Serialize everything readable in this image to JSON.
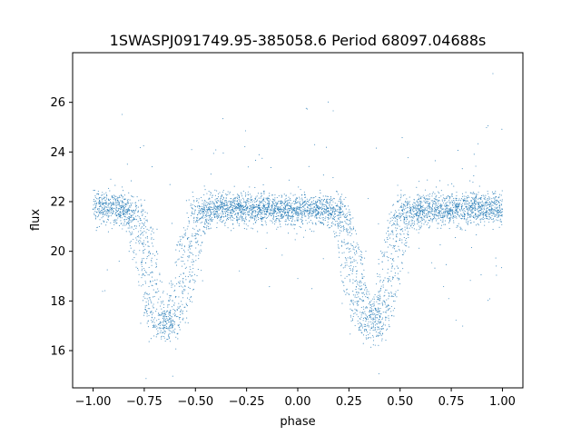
{
  "chart_data": {
    "type": "scatter",
    "title": "1SWASPJ091749.95-385058.6 Period 68097.04688s",
    "xlabel": "phase",
    "ylabel": "flux",
    "xlim": [
      -1.1,
      1.1
    ],
    "ylim": [
      14.5,
      28.0
    ],
    "xticks": [
      -1.0,
      -0.75,
      -0.5,
      -0.25,
      0.0,
      0.25,
      0.5,
      0.75,
      1.0
    ],
    "xtick_labels": [
      "−1.00",
      "−0.75",
      "−0.50",
      "−0.25",
      "0.00",
      "0.25",
      "0.50",
      "0.75",
      "1.00"
    ],
    "yticks": [
      16,
      18,
      20,
      22,
      24,
      26
    ],
    "ytick_labels": [
      "16",
      "18",
      "20",
      "22",
      "24",
      "26"
    ],
    "grid": false,
    "marker_color": "#1f77b4",
    "series": [
      {
        "baseline_flux": 21.7,
        "scatter_sigma": 0.45,
        "eclipse_phases": [
          -0.64,
          0.36
        ],
        "eclipse_min_flux": 16.9,
        "eclipse_half_width": 0.17,
        "x": [
          -1.0,
          -0.9,
          -0.85,
          -0.8,
          -0.76,
          -0.72,
          -0.68,
          -0.64,
          -0.6,
          -0.56,
          -0.52,
          -0.48,
          -0.4,
          -0.3,
          -0.2,
          -0.1,
          0.0,
          0.1,
          0.16,
          0.2,
          0.24,
          0.28,
          0.32,
          0.36,
          0.4,
          0.44,
          0.48,
          0.52,
          0.6,
          0.7,
          0.8,
          0.9,
          1.0
        ],
        "y": [
          21.7,
          21.6,
          21.5,
          21.3,
          20.3,
          18.8,
          17.5,
          16.9,
          17.4,
          18.9,
          20.4,
          21.3,
          21.6,
          21.8,
          21.8,
          21.7,
          21.7,
          21.6,
          21.5,
          21.3,
          20.3,
          18.8,
          17.5,
          16.9,
          17.4,
          18.9,
          20.4,
          21.3,
          21.6,
          21.8,
          21.8,
          21.7,
          21.7
        ]
      }
    ]
  }
}
